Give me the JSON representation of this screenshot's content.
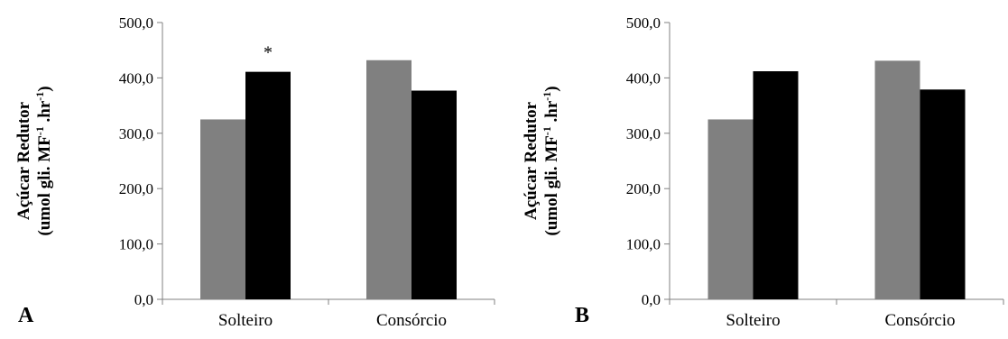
{
  "chart_data": [
    {
      "type": "bar",
      "panel_label": "A",
      "categories": [
        "Solteiro",
        "Consórcio"
      ],
      "series": [
        {
          "values": [
            325,
            432
          ],
          "color": "#808080"
        },
        {
          "values": [
            411,
            377
          ],
          "color": "#000000"
        }
      ],
      "y_ticks": [
        "0,0",
        "100,0",
        "200,0",
        "300,0",
        "400,0",
        "500,0"
      ],
      "ylim": [
        0,
        500
      ],
      "ylabel_line1": "Açúcar Redutor",
      "ylabel_line2_main": "(umol gli. MF",
      "ylabel_sup1": "-1",
      "ylabel_line2_mid": " .hr",
      "ylabel_sup2": "-1",
      "ylabel_line2_end": ")",
      "annotation": {
        "text": "*",
        "category": "Solteiro",
        "series": 1
      },
      "grid": false,
      "legend": "none"
    },
    {
      "type": "bar",
      "panel_label": "B",
      "categories": [
        "Solteiro",
        "Consórcio"
      ],
      "series": [
        {
          "values": [
            325,
            431
          ],
          "color": "#808080"
        },
        {
          "values": [
            412,
            379
          ],
          "color": "#000000"
        }
      ],
      "y_ticks": [
        "0,0",
        "100,0",
        "200,0",
        "300,0",
        "400,0",
        "500,0"
      ],
      "ylim": [
        0,
        500
      ],
      "ylabel_line1": "Açúcar Redutor",
      "ylabel_line2_main": "(umol gli. MF",
      "ylabel_sup1": "-1",
      "ylabel_line2_mid": " .hr",
      "ylabel_sup2": "-1",
      "ylabel_line2_end": ")",
      "grid": false,
      "legend": "none"
    }
  ]
}
